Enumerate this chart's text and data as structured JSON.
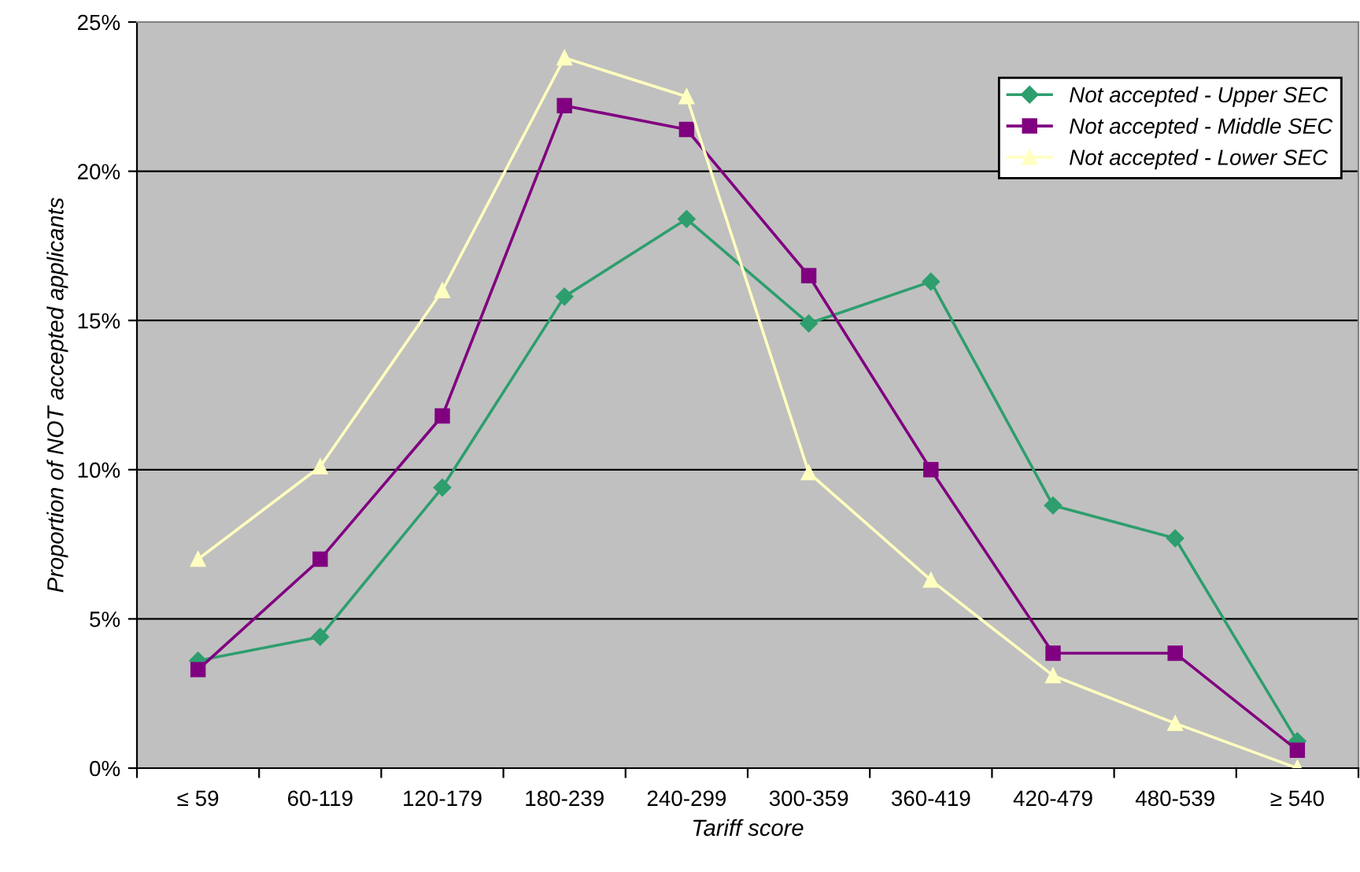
{
  "chart_data": {
    "type": "line",
    "xlabel": "Tariff score",
    "ylabel": "Proportion of NOT accepted applicants",
    "categories": [
      "≤ 59",
      "60-119",
      "120-179",
      "180-239",
      "240-299",
      "300-359",
      "360-419",
      "420-479",
      "480-539",
      "≥ 540"
    ],
    "series": [
      {
        "name": "Not accepted - Upper SEC",
        "color": "#2e9e6e",
        "marker": "diamond",
        "values": [
          3.6,
          4.4,
          9.4,
          15.8,
          18.4,
          14.9,
          16.3,
          8.8,
          7.7,
          0.9
        ]
      },
      {
        "name": "Not accepted - Middle SEC",
        "color": "#800080",
        "marker": "square",
        "values": [
          3.3,
          7.0,
          11.8,
          22.2,
          21.4,
          16.5,
          10.0,
          3.85,
          3.85,
          0.6
        ]
      },
      {
        "name": "Not accepted - Lower SEC",
        "color": "#ffffc0",
        "marker": "triangle",
        "values": [
          7.0,
          10.1,
          16.0,
          23.8,
          22.5,
          9.9,
          6.3,
          3.1,
          1.5,
          0.0
        ]
      }
    ],
    "ylim": [
      0,
      25
    ],
    "yticks": [
      {
        "value": 0,
        "label": "0%"
      },
      {
        "value": 5,
        "label": "5%"
      },
      {
        "value": 10,
        "label": "10%"
      },
      {
        "value": 15,
        "label": "15%"
      },
      {
        "value": 20,
        "label": "20%"
      },
      {
        "value": 25,
        "label": "25%"
      }
    ],
    "grid": "y",
    "legend": "top right",
    "line_style": "solid"
  }
}
